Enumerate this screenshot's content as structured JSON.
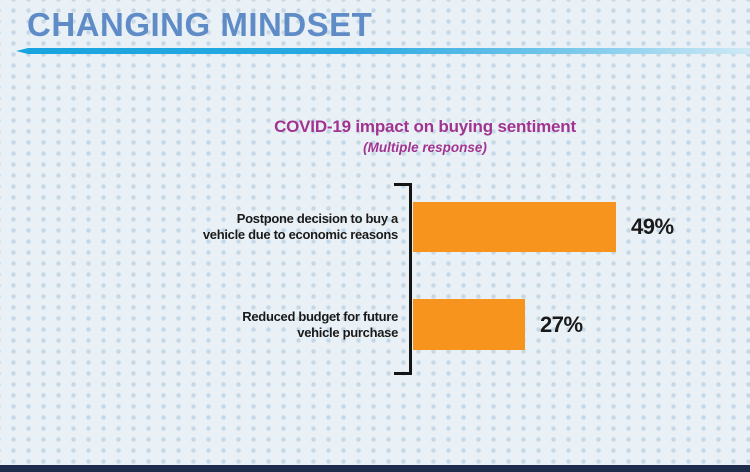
{
  "header": {
    "title": "CHANGING MINDSET"
  },
  "colors": {
    "background": "#e9f1f7",
    "dot": "#c6d8e5",
    "heading_blue": "#5f8cc7",
    "accent_cyan": "#29a9e1",
    "magenta": "#a13391",
    "bar_orange": "#f7941e",
    "text_dark": "#1a1a1a",
    "footer_navy": "#1e2c4d"
  },
  "chart_data": {
    "type": "bar",
    "orientation": "horizontal",
    "title": "COVID-19 impact on buying sentiment",
    "subtitle": "(Multiple response)",
    "categories": [
      "Postpone decision to buy a vehicle due to economic reasons",
      "Reduced budget for future vehicle purchase"
    ],
    "values": [
      49,
      27
    ],
    "unit": "percent",
    "xlim": [
      0,
      100
    ],
    "grid": false,
    "legend": false,
    "axis_shown": false,
    "bar_color": "#f7941e",
    "value_label_position": "right-of-bar",
    "series": [
      {
        "label_lines": [
          "Postpone decision to buy a",
          "vehicle due to economic reasons"
        ],
        "value": 49,
        "display": "49%"
      },
      {
        "label_lines": [
          "Reduced budget for future",
          "vehicle purchase"
        ],
        "value": 27,
        "display": "27%"
      }
    ]
  }
}
